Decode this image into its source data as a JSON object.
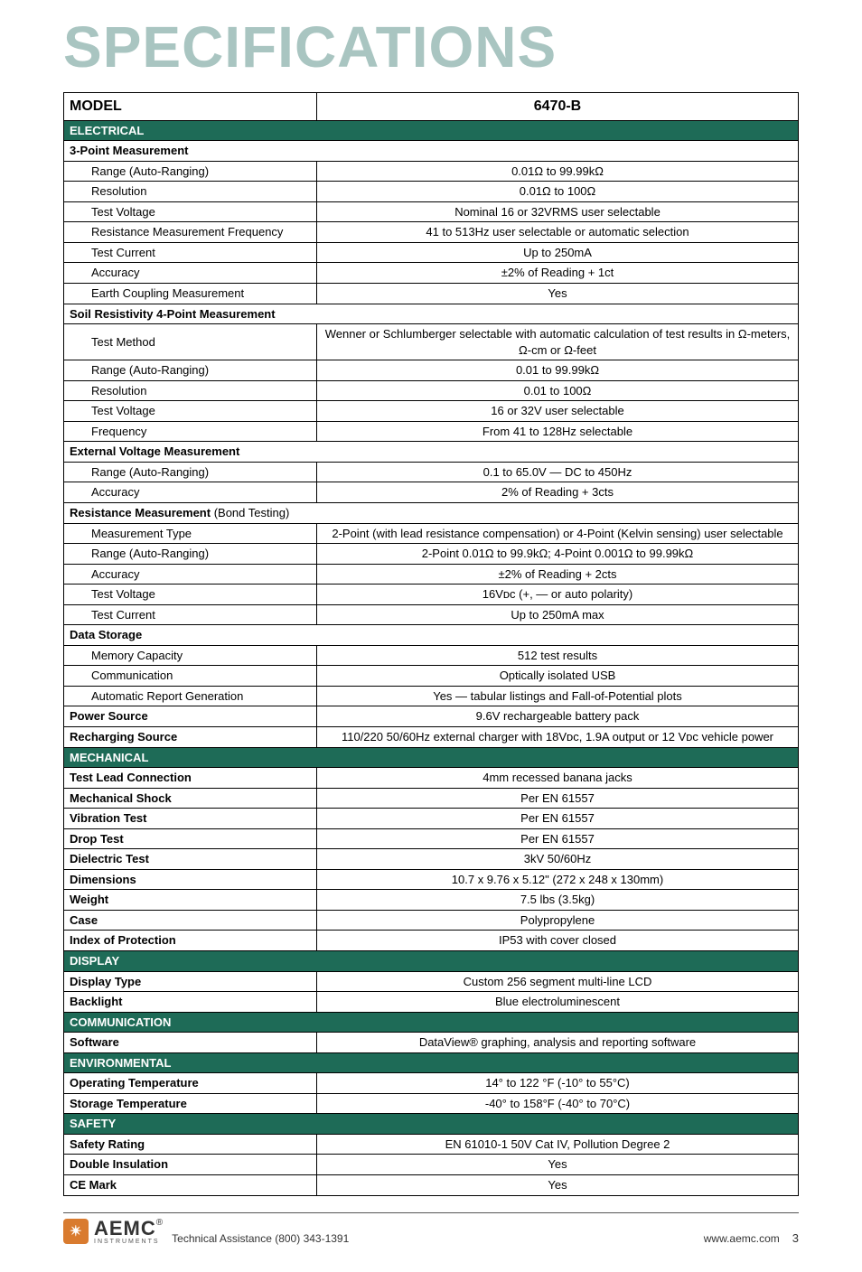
{
  "title": "SPECIFICATIONS",
  "colors": {
    "title_color": "#a9c5c1",
    "section_bg": "#1e6b57",
    "section_fg": "#ffffff",
    "border": "#000000",
    "logo_badge": "#d97b2f"
  },
  "header": {
    "col1": "MODEL",
    "col2": "6470-B"
  },
  "sections": [
    {
      "name": "ELECTRICAL",
      "rows": [
        {
          "label": "3-Point Measurement",
          "value": "",
          "bold": true,
          "indent": 0,
          "colspan": true
        },
        {
          "label": "Range (Auto-Ranging)",
          "value": "0.01Ω  to 99.99kΩ",
          "indent": 2
        },
        {
          "label": "Resolution",
          "value": "0.01Ω to 100Ω",
          "indent": 2
        },
        {
          "label": "Test Voltage",
          "value": "Nominal 16 or 32VRMS user selectable",
          "indent": 2
        },
        {
          "label": "Resistance Measurement Frequency",
          "value": "41 to 513Hz user selectable or automatic selection",
          "indent": 2
        },
        {
          "label": "Test Current",
          "value": "Up to 250mA",
          "indent": 2
        },
        {
          "label": "Accuracy",
          "value": "±2% of Reading + 1ct",
          "indent": 2
        },
        {
          "label": "Earth Coupling Measurement",
          "value": "Yes",
          "indent": 2
        },
        {
          "label": "Soil Resistivity 4-Point Measurement",
          "value": "",
          "bold": true,
          "indent": 0,
          "colspan": true
        },
        {
          "label": "Test Method",
          "value": "Wenner or Schlumberger selectable with automatic calculation of test results in Ω-meters, Ω-cm or Ω-feet",
          "indent": 2
        },
        {
          "label": "Range (Auto-Ranging)",
          "value": "0.01  to 99.99kΩ",
          "indent": 2
        },
        {
          "label": "Resolution",
          "value": "0.01 to 100Ω",
          "indent": 2
        },
        {
          "label": "Test Voltage",
          "value": "16 or 32V user selectable",
          "indent": 2
        },
        {
          "label": "Frequency",
          "value": "From 41 to 128Hz selectable",
          "indent": 2
        },
        {
          "label": "External Voltage Measurement",
          "value": "",
          "bold": true,
          "indent": 0,
          "colspan": true
        },
        {
          "label": "Range (Auto-Ranging)",
          "value": "0.1 to 65.0V — DC to 450Hz",
          "indent": 2
        },
        {
          "label": "Accuracy",
          "value": "2% of Reading + 3cts",
          "indent": 2
        },
        {
          "label_html": "<b>Resistance Measurement</b> (Bond Testing)",
          "value": "",
          "indent": 0,
          "colspan": true
        },
        {
          "label": "Measurement Type",
          "value": "2-Point (with lead resistance compensation) or 4-Point (Kelvin sensing) user selectable",
          "indent": 2
        },
        {
          "label": "Range (Auto-Ranging)",
          "value": "2-Point 0.01Ω to 99.9kΩ; 4-Point 0.001Ω to 99.99kΩ",
          "indent": 2
        },
        {
          "label": "Accuracy",
          "value": "±2% of Reading + 2cts",
          "indent": 2
        },
        {
          "label": "Test Voltage",
          "value": "16Vᴅᴄ (+, — or auto polarity)",
          "indent": 2
        },
        {
          "label": "Test Current",
          "value": "Up to 250mA max",
          "indent": 2
        },
        {
          "label": "Data Storage",
          "value": "",
          "bold": true,
          "indent": 0,
          "colspan": true
        },
        {
          "label": "Memory Capacity",
          "value": "512 test results",
          "indent": 2
        },
        {
          "label": "Communication",
          "value": "Optically isolated USB",
          "indent": 2
        },
        {
          "label": "Automatic Report Generation",
          "value": "Yes — tabular listings and Fall-of-Potential plots",
          "indent": 2
        },
        {
          "label": "Power Source",
          "value": "9.6V rechargeable battery pack",
          "bold": true,
          "indent": 0
        },
        {
          "label": "Recharging Source",
          "value": "110/220 50/60Hz external charger with 18Vᴅᴄ, 1.9A output or 12 Vᴅᴄ vehicle power",
          "bold": true,
          "indent": 0
        }
      ]
    },
    {
      "name": "MECHANICAL",
      "rows": [
        {
          "label": "Test Lead Connection",
          "value": "4mm recessed banana jacks",
          "bold": true
        },
        {
          "label": "Mechanical Shock",
          "value": "Per EN 61557",
          "bold": true
        },
        {
          "label": "Vibration Test",
          "value": "Per EN 61557",
          "bold": true
        },
        {
          "label": "Drop Test",
          "value": "Per EN 61557",
          "bold": true
        },
        {
          "label": "Dielectric Test",
          "value": "3kV 50/60Hz",
          "bold": true
        },
        {
          "label": "Dimensions",
          "value": "10.7 x 9.76 x 5.12\" (272 x 248 x 130mm)",
          "bold": true
        },
        {
          "label": "Weight",
          "value": "7.5 lbs (3.5kg)",
          "bold": true
        },
        {
          "label": "Case",
          "value": "Polypropylene",
          "bold": true
        },
        {
          "label": "Index of Protection",
          "value": "IP53 with cover closed",
          "bold": true
        }
      ]
    },
    {
      "name": "DISPLAY",
      "rows": [
        {
          "label": "Display Type",
          "value": "Custom 256 segment multi-line LCD",
          "bold": true
        },
        {
          "label": "Backlight",
          "value": "Blue electroluminescent",
          "bold": true
        }
      ]
    },
    {
      "name": "COMMUNICATION",
      "rows": [
        {
          "label": "Software",
          "value": "DataView® graphing, analysis and reporting software",
          "bold": true
        }
      ]
    },
    {
      "name": "ENVIRONMENTAL",
      "rows": [
        {
          "label": "Operating Temperature",
          "value": "14° to 122 °F (-10° to 55°C)",
          "bold": true
        },
        {
          "label": "Storage Temperature",
          "value": "-40° to 158°F (-40° to 70°C)",
          "bold": true
        }
      ]
    },
    {
      "name": "SAFETY",
      "rows": [
        {
          "label": "Safety Rating",
          "value": "EN 61010-1 50V Cat IV, Pollution Degree 2",
          "bold": true
        },
        {
          "label": "Double Insulation",
          "value": "Yes",
          "bold": true
        },
        {
          "label": "CE Mark",
          "value": "Yes",
          "bold": true
        }
      ]
    }
  ],
  "footer": {
    "logo_name": "AEMC",
    "logo_sub": "INSTRUMENTS",
    "assistance": "Technical Assistance (800) 343-1391",
    "url": "www.aemc.com",
    "page": "3"
  }
}
